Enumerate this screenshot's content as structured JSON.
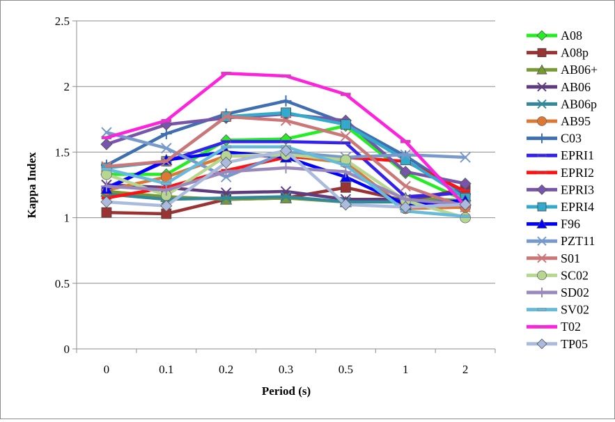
{
  "chart_data": {
    "type": "line",
    "title": "",
    "xlabel": "Period (s)",
    "ylabel": "Kappa Index",
    "categories": [
      "0",
      "0.1",
      "0.2",
      "0.3",
      "0.5",
      "1",
      "2"
    ],
    "ylim": [
      0,
      2.5
    ],
    "yticks": [
      "0",
      "0.5",
      "1",
      "1.5",
      "2",
      "2.5"
    ],
    "grid": "horizontal",
    "legend_position": "right",
    "series": [
      {
        "name": "A08",
        "color": "#22ee22",
        "marker": "diamond",
        "values": [
          1.33,
          1.33,
          1.59,
          1.6,
          1.7,
          1.34,
          1.13
        ]
      },
      {
        "name": "A08p",
        "color": "#9b3333",
        "marker": "square",
        "values": [
          1.04,
          1.03,
          1.14,
          1.15,
          1.23,
          1.13,
          1.22
        ]
      },
      {
        "name": "AB06+",
        "color": "#779933",
        "marker": "triangle",
        "values": [
          1.2,
          1.16,
          1.14,
          1.15,
          1.12,
          1.15,
          1.13
        ]
      },
      {
        "name": "AB06",
        "color": "#5e3c7e",
        "marker": "x",
        "values": [
          1.25,
          1.23,
          1.19,
          1.2,
          1.14,
          1.14,
          1.2
        ]
      },
      {
        "name": "AB06p",
        "color": "#338899",
        "marker": "x",
        "values": [
          1.18,
          1.14,
          1.15,
          1.16,
          1.12,
          1.12,
          1.13
        ]
      },
      {
        "name": "AB95",
        "color": "#dd7733",
        "marker": "circle",
        "values": [
          1.21,
          1.31,
          1.47,
          1.47,
          1.42,
          1.07,
          1.08
        ]
      },
      {
        "name": "C03",
        "color": "#3f6fb0",
        "marker": "plus",
        "values": [
          1.4,
          1.64,
          1.79,
          1.89,
          1.72,
          1.47,
          1.18
        ]
      },
      {
        "name": "EPRI1",
        "color": "#3322ee",
        "marker": "dash",
        "values": [
          1.23,
          1.43,
          1.58,
          1.58,
          1.57,
          1.16,
          1.19
        ]
      },
      {
        "name": "EPRI2",
        "color": "#ff1111",
        "marker": "dash",
        "values": [
          1.15,
          1.23,
          1.36,
          1.46,
          1.46,
          1.43,
          1.2
        ]
      },
      {
        "name": "EPRI3",
        "color": "#7755aa",
        "marker": "diamond",
        "values": [
          1.56,
          1.71,
          1.76,
          1.79,
          1.74,
          1.35,
          1.26
        ]
      },
      {
        "name": "EPRI4",
        "color": "#33aacc",
        "marker": "square",
        "values": [
          1.38,
          1.43,
          1.77,
          1.8,
          1.71,
          1.44,
          1.15
        ]
      },
      {
        "name": "F96",
        "color": "#0000ff",
        "marker": "triangle",
        "values": [
          1.22,
          1.44,
          1.5,
          1.46,
          1.31,
          1.1,
          1.13
        ]
      },
      {
        "name": "PZT11",
        "color": "#7799cc",
        "marker": "x",
        "values": [
          1.65,
          1.53,
          1.31,
          1.5,
          1.46,
          1.48,
          1.46
        ]
      },
      {
        "name": "S01",
        "color": "#cc7777",
        "marker": "x",
        "values": [
          1.39,
          1.43,
          1.77,
          1.74,
          1.62,
          1.24,
          1.08
        ]
      },
      {
        "name": "SC02",
        "color": "#b7d690",
        "marker": "circle",
        "values": [
          1.33,
          1.17,
          1.47,
          1.48,
          1.44,
          1.13,
          1.0
        ]
      },
      {
        "name": "SD02",
        "color": "#9988bb",
        "marker": "plus",
        "values": [
          1.24,
          1.21,
          1.35,
          1.38,
          1.35,
          1.14,
          1.1
        ]
      },
      {
        "name": "SV02",
        "color": "#66bbdd",
        "marker": "dash",
        "values": [
          1.37,
          1.26,
          1.54,
          1.54,
          1.4,
          1.05,
          1.01
        ]
      },
      {
        "name": "T02",
        "color": "#ff22dd",
        "marker": "dash",
        "values": [
          1.61,
          1.74,
          2.1,
          2.08,
          1.94,
          1.58,
          1.09
        ]
      },
      {
        "name": "TP05",
        "color": "#aabbdd",
        "marker": "diamond",
        "values": [
          1.12,
          1.09,
          1.42,
          1.51,
          1.1,
          1.08,
          1.1
        ]
      }
    ]
  }
}
